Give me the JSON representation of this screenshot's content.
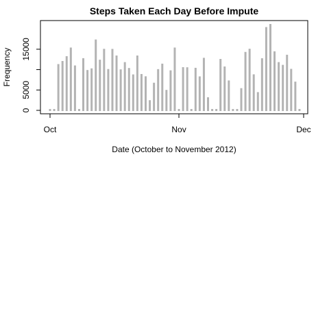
{
  "chart_data": {
    "type": "bar",
    "title": "Steps Taken Each Day Before Impute",
    "xlabel": "Date (October to November 2012)",
    "ylabel": "Frequency",
    "x_ticks": [
      {
        "label": "Oct",
        "day": 1
      },
      {
        "label": "Nov",
        "day": 32
      },
      {
        "label": "Dec",
        "day": 62
      }
    ],
    "y_ticks": [
      0,
      5000,
      10000,
      15000
    ],
    "y_tick_labels": [
      "0",
      "5000",
      "",
      "15000"
    ],
    "ylim": [
      0,
      21194
    ],
    "xlim": [
      1,
      62
    ],
    "bar_color": "#b3b3b3",
    "dates": [
      "2012-10-01",
      "2012-10-02",
      "2012-10-03",
      "2012-10-04",
      "2012-10-05",
      "2012-10-06",
      "2012-10-07",
      "2012-10-08",
      "2012-10-09",
      "2012-10-10",
      "2012-10-11",
      "2012-10-12",
      "2012-10-13",
      "2012-10-14",
      "2012-10-15",
      "2012-10-16",
      "2012-10-17",
      "2012-10-18",
      "2012-10-19",
      "2012-10-20",
      "2012-10-21",
      "2012-10-22",
      "2012-10-23",
      "2012-10-24",
      "2012-10-25",
      "2012-10-26",
      "2012-10-27",
      "2012-10-28",
      "2012-10-29",
      "2012-10-30",
      "2012-10-31",
      "2012-11-01",
      "2012-11-02",
      "2012-11-03",
      "2012-11-04",
      "2012-11-05",
      "2012-11-06",
      "2012-11-07",
      "2012-11-08",
      "2012-11-09",
      "2012-11-10",
      "2012-11-11",
      "2012-11-12",
      "2012-11-13",
      "2012-11-14",
      "2012-11-15",
      "2012-11-16",
      "2012-11-17",
      "2012-11-18",
      "2012-11-19",
      "2012-11-20",
      "2012-11-21",
      "2012-11-22",
      "2012-11-23",
      "2012-11-24",
      "2012-11-25",
      "2012-11-26",
      "2012-11-27",
      "2012-11-28",
      "2012-11-29",
      "2012-11-30"
    ],
    "values": [
      0,
      126,
      11352,
      12116,
      13294,
      15420,
      11015,
      0,
      12811,
      9900,
      10304,
      17382,
      12426,
      15098,
      10139,
      15084,
      13452,
      10056,
      11829,
      10395,
      8821,
      13460,
      8918,
      8355,
      2492,
      6778,
      10119,
      11458,
      5018,
      9819,
      15414,
      0,
      10600,
      10571,
      0,
      10439,
      8334,
      12883,
      3219,
      0,
      0,
      12608,
      10765,
      7336,
      0,
      41,
      5441,
      14339,
      15110,
      8841,
      4472,
      12787,
      20427,
      21194,
      14478,
      11834,
      11162,
      13646,
      10183,
      7047,
      0
    ]
  }
}
